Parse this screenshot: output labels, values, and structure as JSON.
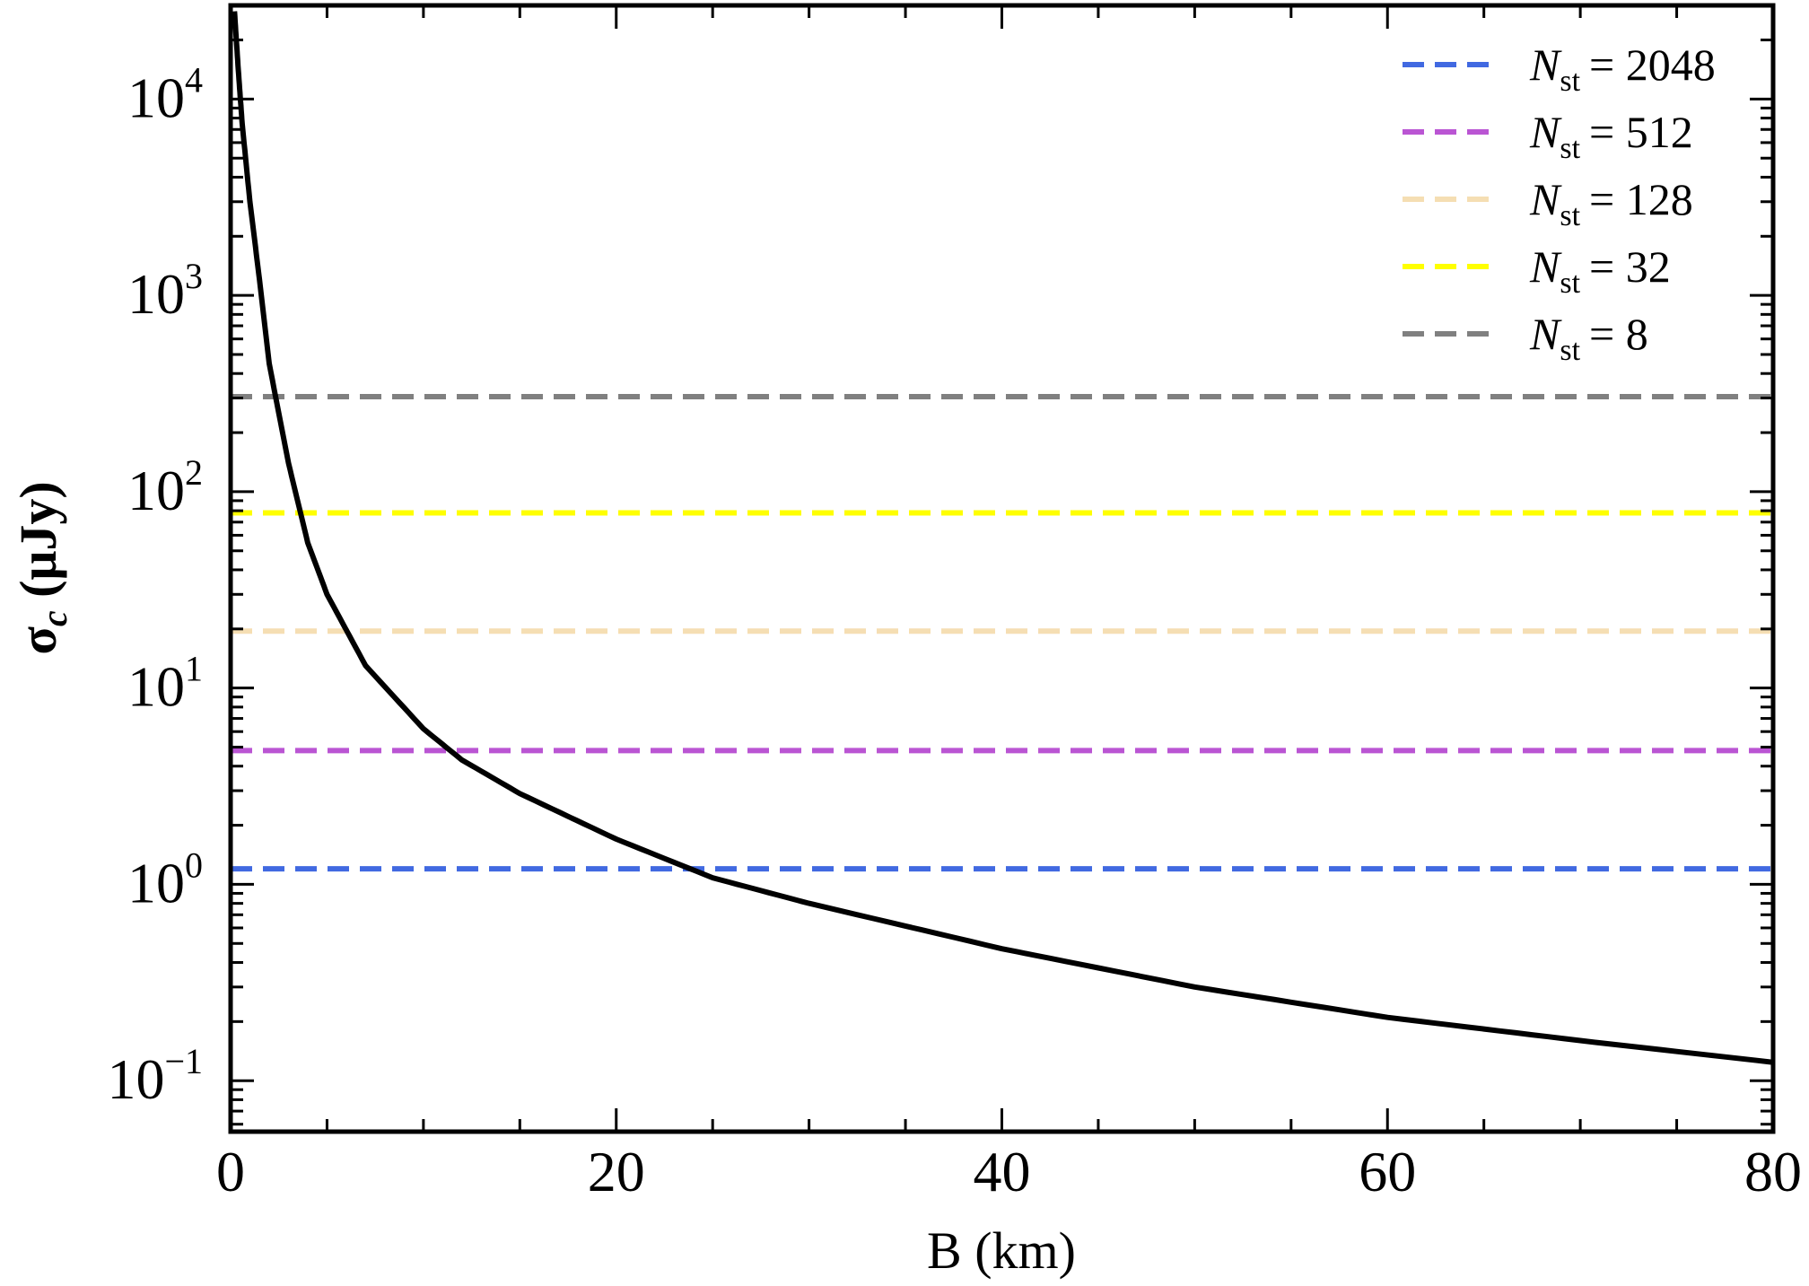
{
  "chart_data": {
    "type": "line",
    "xlabel": "B (km)",
    "ylabel_greek": "σ",
    "ylabel_sub": "c",
    "ylabel_unit": " (μJy)",
    "x_scale": "linear",
    "y_scale": "log",
    "xlim": [
      0,
      80
    ],
    "ylim": [
      0.055,
      30000
    ],
    "x_ticks": [
      0,
      20,
      40,
      60,
      80
    ],
    "x_tick_labels": [
      "0",
      "20",
      "40",
      "60",
      "80"
    ],
    "y_ticks": [
      0.1,
      1,
      10,
      100,
      1000,
      10000
    ],
    "y_tick_labels": [
      {
        "base": "10",
        "exp": "−1"
      },
      {
        "base": "10",
        "exp": "0"
      },
      {
        "base": "10",
        "exp": "1"
      },
      {
        "base": "10",
        "exp": "2"
      },
      {
        "base": "10",
        "exp": "3"
      },
      {
        "base": "10",
        "exp": "4"
      }
    ],
    "grid": false,
    "legend_position": "top-right",
    "curve": {
      "color": "#000000",
      "x": [
        0.2,
        0.4,
        0.6,
        1,
        1.5,
        2,
        3,
        4,
        5,
        7,
        10,
        12,
        15,
        20,
        25,
        30,
        40,
        50,
        60,
        70,
        80
      ],
      "y": [
        28000,
        14000,
        7500,
        3000,
        1200,
        450,
        140,
        55,
        30,
        13,
        6.2,
        4.3,
        2.9,
        1.7,
        1.08,
        0.8,
        0.47,
        0.3,
        0.21,
        0.16,
        0.124
      ]
    },
    "series": [
      {
        "name_prefix": "N",
        "name_sub": "st",
        "name_value": "= 2048",
        "value": 1.2,
        "color": "#4169e1"
      },
      {
        "name_prefix": "N",
        "name_sub": "st",
        "name_value": "= 512",
        "value": 4.8,
        "color": "#ba55d3"
      },
      {
        "name_prefix": "N",
        "name_sub": "st",
        "name_value": "= 128",
        "value": 19.5,
        "color": "#f5deb3"
      },
      {
        "name_prefix": "N",
        "name_sub": "st",
        "name_value": "= 32",
        "value": 78,
        "color": "#ffff00"
      },
      {
        "name_prefix": "N",
        "name_sub": "st",
        "name_value": "= 8",
        "value": 305,
        "color": "#808080"
      }
    ]
  }
}
